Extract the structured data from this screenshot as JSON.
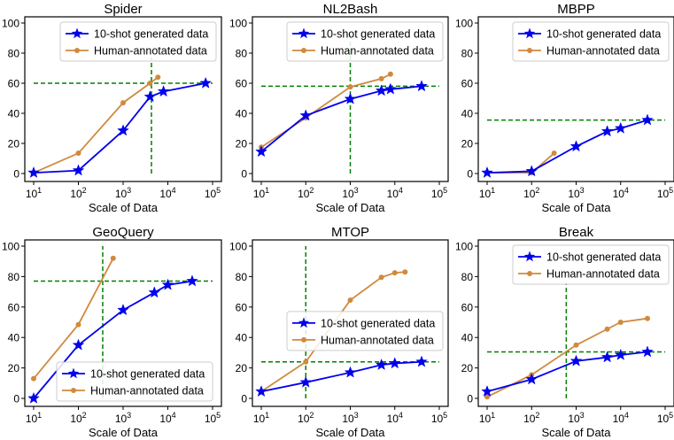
{
  "colors": {
    "generated": "#0000ee",
    "human": "#d08a3e",
    "reference": "#008000",
    "axes": "#000000"
  },
  "chart_data": [
    {
      "type": "line",
      "title": "Spider",
      "xlabel": "Scale of Data",
      "ylabel": "",
      "xscale": "log",
      "xlim": [
        10,
        100000
      ],
      "ylim": [
        0,
        100
      ],
      "xticks": [
        "10^1",
        "10^2",
        "10^3",
        "10^4",
        "10^5"
      ],
      "yticks": [
        0,
        20,
        40,
        60,
        80,
        100
      ],
      "legend_position": "top-right",
      "series": [
        {
          "name": "10-shot generated data",
          "marker": "star",
          "x": [
            10,
            100,
            1000,
            4000,
            8000,
            70000
          ],
          "values": [
            0.5,
            2,
            28.5,
            51,
            54.5,
            60
          ]
        },
        {
          "name": "Human-annotated data",
          "marker": "circle",
          "x": [
            10,
            100,
            1000,
            4000,
            6000
          ],
          "values": [
            0.5,
            13.5,
            47,
            60,
            64
          ]
        }
      ],
      "ref_h": {
        "value": 60,
        "from": 10,
        "to": 100000
      },
      "ref_v": {
        "value": 4300,
        "from": 0,
        "to": 77
      }
    },
    {
      "type": "line",
      "title": "NL2Bash",
      "xlabel": "Scale of Data",
      "ylabel": "",
      "xscale": "log",
      "xlim": [
        10,
        100000
      ],
      "ylim": [
        0,
        100
      ],
      "xticks": [
        "10^1",
        "10^2",
        "10^3",
        "10^4",
        "10^5"
      ],
      "yticks": [
        0,
        20,
        40,
        60,
        80,
        100
      ],
      "legend_position": "top-right",
      "series": [
        {
          "name": "10-shot generated data",
          "marker": "star",
          "x": [
            10,
            100,
            1000,
            5000,
            8000,
            40000
          ],
          "values": [
            14.5,
            38.5,
            49.5,
            55,
            56,
            58
          ]
        },
        {
          "name": "Human-annotated data",
          "marker": "circle",
          "x": [
            10,
            100,
            1000,
            5000,
            8000
          ],
          "values": [
            17.5,
            37,
            57.5,
            63,
            66
          ]
        }
      ],
      "ref_h": {
        "value": 58,
        "from": 10,
        "to": 100000
      },
      "ref_v": {
        "value": 1000,
        "from": 0,
        "to": 94
      }
    },
    {
      "type": "line",
      "title": "MBPP",
      "xlabel": "Scale of Data",
      "ylabel": "",
      "xscale": "log",
      "xlim": [
        10,
        100000
      ],
      "ylim": [
        0,
        100
      ],
      "xticks": [
        "10^1",
        "10^2",
        "10^3",
        "10^4",
        "10^5"
      ],
      "yticks": [
        0,
        20,
        40,
        60,
        80,
        100
      ],
      "legend_position": "top-right",
      "series": [
        {
          "name": "10-shot generated data",
          "marker": "star",
          "x": [
            10,
            100,
            1000,
            5000,
            10000,
            40000
          ],
          "values": [
            0.5,
            1.5,
            18,
            28,
            30,
            35.5
          ]
        },
        {
          "name": "Human-annotated data",
          "marker": "circle",
          "x": [
            10,
            100,
            320
          ],
          "values": [
            0.5,
            0.5,
            13.5
          ]
        }
      ],
      "ref_h": {
        "value": 35.5,
        "from": 10,
        "to": 100000
      },
      "ref_v": null
    },
    {
      "type": "line",
      "title": "GeoQuery",
      "xlabel": "Scale of Data",
      "ylabel": "",
      "xscale": "log",
      "xlim": [
        10,
        100000
      ],
      "ylim": [
        0,
        100
      ],
      "xticks": [
        "10^1",
        "10^2",
        "10^3",
        "10^4",
        "10^5"
      ],
      "yticks": [
        0,
        20,
        40,
        60,
        80,
        100
      ],
      "legend_position": "bottom-left",
      "series": [
        {
          "name": "10-shot generated data",
          "marker": "star",
          "x": [
            10,
            100,
            1000,
            5000,
            10000,
            35000
          ],
          "values": [
            0,
            35,
            58,
            69.5,
            74.5,
            77
          ]
        },
        {
          "name": "Human-annotated data",
          "marker": "circle",
          "x": [
            10,
            100,
            600
          ],
          "values": [
            13,
            48.5,
            92
          ]
        }
      ],
      "ref_h": {
        "value": 77,
        "from": 10,
        "to": 100000
      },
      "ref_v": {
        "value": 350,
        "from": 0,
        "to": 100
      }
    },
    {
      "type": "line",
      "title": "MTOP",
      "xlabel": "Scale of Data",
      "ylabel": "",
      "xscale": "log",
      "xlim": [
        10,
        100000
      ],
      "ylim": [
        0,
        100
      ],
      "xticks": [
        "10^1",
        "10^2",
        "10^3",
        "10^4",
        "10^5"
      ],
      "yticks": [
        0,
        20,
        40,
        60,
        80,
        100
      ],
      "legend_position": "center-right",
      "series": [
        {
          "name": "10-shot generated data",
          "marker": "star",
          "x": [
            10,
            100,
            1000,
            5000,
            10000,
            40000
          ],
          "values": [
            4.5,
            10.5,
            17,
            22,
            23,
            24
          ]
        },
        {
          "name": "Human-annotated data",
          "marker": "circle",
          "x": [
            10,
            100,
            1000,
            5000,
            10000,
            17000
          ],
          "values": [
            4.5,
            24,
            64.5,
            79.5,
            82.5,
            83
          ]
        }
      ],
      "ref_h": {
        "value": 24,
        "from": 10,
        "to": 100000
      },
      "ref_v": {
        "value": 100,
        "from": 0,
        "to": 100
      }
    },
    {
      "type": "line",
      "title": "Break",
      "xlabel": "Scale of Data",
      "ylabel": "",
      "xscale": "log",
      "xlim": [
        10,
        100000
      ],
      "ylim": [
        0,
        100
      ],
      "xticks": [
        "10^1",
        "10^2",
        "10^3",
        "10^4",
        "10^5"
      ],
      "yticks": [
        0,
        20,
        40,
        60,
        80,
        100
      ],
      "legend_position": "top-right",
      "series": [
        {
          "name": "10-shot generated data",
          "marker": "star",
          "x": [
            10,
            100,
            1000,
            5000,
            10000,
            40000
          ],
          "values": [
            4.5,
            12.5,
            24.5,
            27,
            28.5,
            30.5
          ]
        },
        {
          "name": "Human-annotated data",
          "marker": "circle",
          "x": [
            10,
            100,
            1000,
            5000,
            10000,
            40000
          ],
          "values": [
            1,
            15.5,
            35,
            45.5,
            50,
            52.5
          ]
        }
      ],
      "ref_h": {
        "value": 30.5,
        "from": 10,
        "to": 100000
      },
      "ref_v": {
        "value": 600,
        "from": 0,
        "to": 76
      }
    }
  ]
}
